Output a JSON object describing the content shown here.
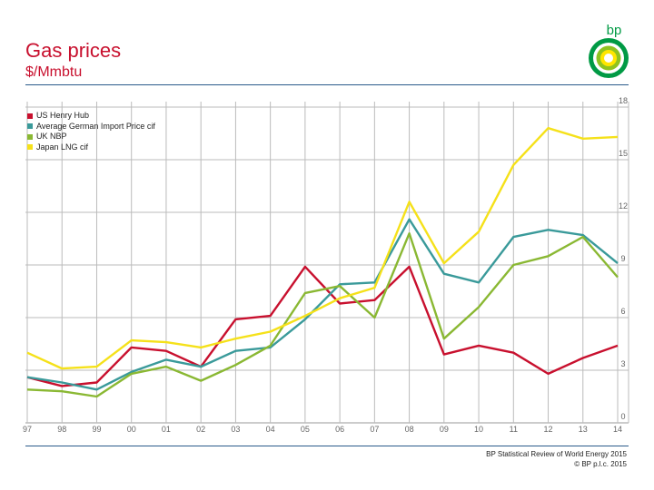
{
  "header": {
    "title": "Gas prices",
    "subtitle": "$/Mmbtu"
  },
  "logo": {
    "text": "bp",
    "icon": "helios-icon"
  },
  "footer": {
    "line1": "BP Statistical Review of World Energy 2015",
    "line2": "© BP p.l.c. 2015"
  },
  "chart_data": {
    "type": "line",
    "title": "Gas prices",
    "ylabel": "$/Mmbtu",
    "categories": [
      "97",
      "98",
      "99",
      "00",
      "01",
      "02",
      "03",
      "04",
      "05",
      "06",
      "07",
      "08",
      "09",
      "10",
      "11",
      "12",
      "13",
      "14"
    ],
    "ylim": [
      0,
      18
    ],
    "yticks": [
      0,
      3,
      6,
      9,
      12,
      15,
      18
    ],
    "grid": true,
    "legend_position": "top-left",
    "series": [
      {
        "name": "US Henry Hub",
        "color": "#c8102e",
        "values": [
          2.6,
          2.1,
          2.3,
          4.3,
          4.1,
          3.2,
          5.9,
          6.1,
          8.9,
          6.8,
          7.0,
          8.9,
          3.9,
          4.4,
          4.0,
          2.8,
          3.7,
          4.4
        ]
      },
      {
        "name": "Average German Import Price cif",
        "color": "#3a9a9a",
        "values": [
          2.6,
          2.3,
          1.9,
          2.9,
          3.6,
          3.2,
          4.1,
          4.3,
          5.9,
          7.9,
          8.0,
          11.6,
          8.5,
          8.0,
          10.6,
          11.0,
          10.7,
          9.1
        ]
      },
      {
        "name": "UK NBP",
        "color": "#8ab833",
        "values": [
          1.9,
          1.8,
          1.5,
          2.8,
          3.2,
          2.4,
          3.3,
          4.4,
          7.4,
          7.8,
          6.0,
          10.8,
          4.8,
          6.6,
          9.0,
          9.5,
          10.6,
          8.3
        ]
      },
      {
        "name": "Japan LNG cif",
        "color": "#f5e11a",
        "values": [
          4.0,
          3.1,
          3.2,
          4.7,
          4.6,
          4.3,
          4.8,
          5.2,
          6.1,
          7.1,
          7.7,
          12.6,
          9.1,
          10.9,
          14.7,
          16.8,
          16.2,
          16.3
        ]
      }
    ]
  }
}
